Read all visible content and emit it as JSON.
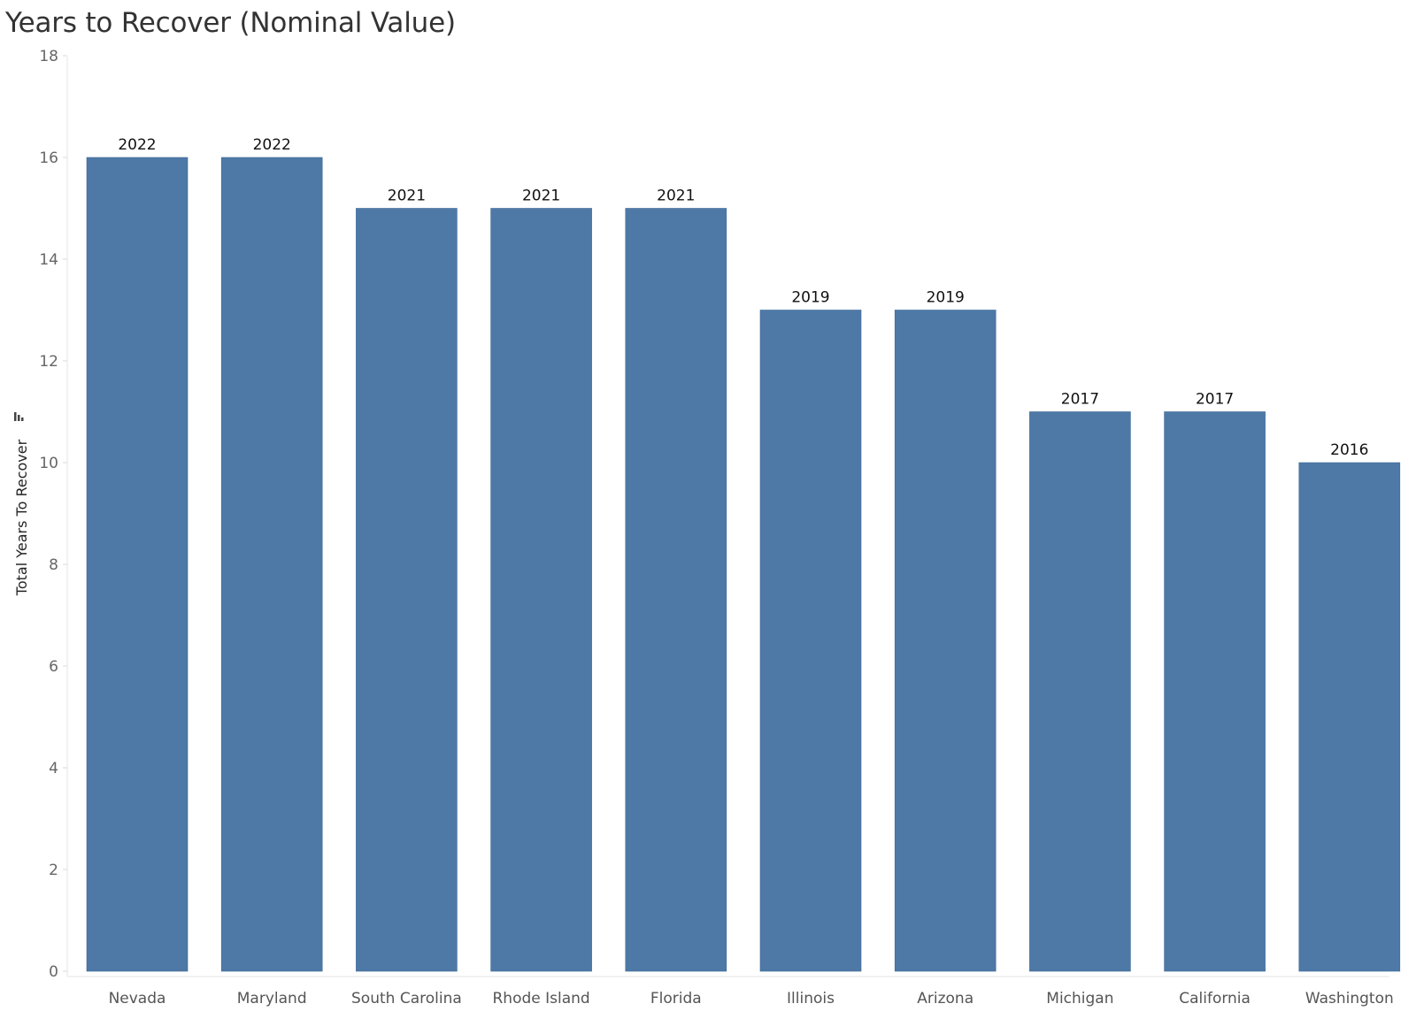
{
  "chart_data": {
    "type": "bar",
    "title": "Years to Recover (Nominal Value)",
    "xlabel": "",
    "ylabel": "Total Years To Recover",
    "ylim": [
      0,
      18
    ],
    "yticks": [
      0,
      2,
      4,
      6,
      8,
      10,
      12,
      14,
      16,
      18
    ],
    "grid": false,
    "categories": [
      "Nevada",
      "Maryland",
      "South Carolina",
      "Rhode Island",
      "Florida",
      "Illinois",
      "Arizona",
      "Michigan",
      "California",
      "Washington"
    ],
    "values": [
      16,
      16,
      15,
      15,
      15,
      13,
      13,
      11,
      11,
      10
    ],
    "data_labels": [
      "2022",
      "2022",
      "2021",
      "2021",
      "2021",
      "2019",
      "2019",
      "2017",
      "2017",
      "2016"
    ],
    "bar_color": "#4e79a7",
    "sort_icon": "sort-descending-icon"
  }
}
